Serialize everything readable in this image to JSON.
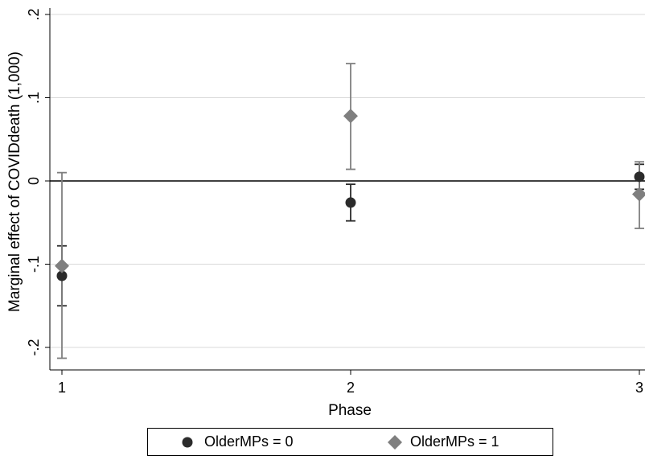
{
  "chart_data": {
    "type": "scatter",
    "ylabel": "Marginal effect of COVIDdeath (1,000)",
    "xlabel": "Phase",
    "x_ticks": [
      "1",
      "2",
      "3"
    ],
    "y_ticks": [
      ".2",
      ".1",
      "0",
      "-.1",
      "-.2"
    ],
    "y_tick_values": [
      0.2,
      0.1,
      0,
      -0.1,
      -0.2
    ],
    "ylim": [
      -0.225,
      0.21
    ],
    "xlim": [
      0.98,
      3.02
    ],
    "grid": true,
    "reference_line_y": 0,
    "legend_position": "bottom",
    "series": [
      {
        "name": "OlderMPs = 0",
        "marker": "circle",
        "color": "#2b2b2b",
        "points": [
          {
            "x": 1,
            "y": -0.114,
            "lo": -0.15,
            "hi": -0.078
          },
          {
            "x": 2,
            "y": -0.026,
            "lo": -0.048,
            "hi": -0.004
          },
          {
            "x": 3,
            "y": 0.005,
            "lo": -0.01,
            "hi": 0.02
          }
        ]
      },
      {
        "name": "OlderMPs = 1",
        "marker": "diamond",
        "color": "#7f7f7f",
        "points": [
          {
            "x": 1,
            "y": -0.102,
            "lo": -0.213,
            "hi": 0.01
          },
          {
            "x": 2,
            "y": 0.078,
            "lo": 0.014,
            "hi": 0.141
          },
          {
            "x": 3,
            "y": -0.016,
            "lo": -0.057,
            "hi": 0.023
          }
        ]
      }
    ]
  }
}
